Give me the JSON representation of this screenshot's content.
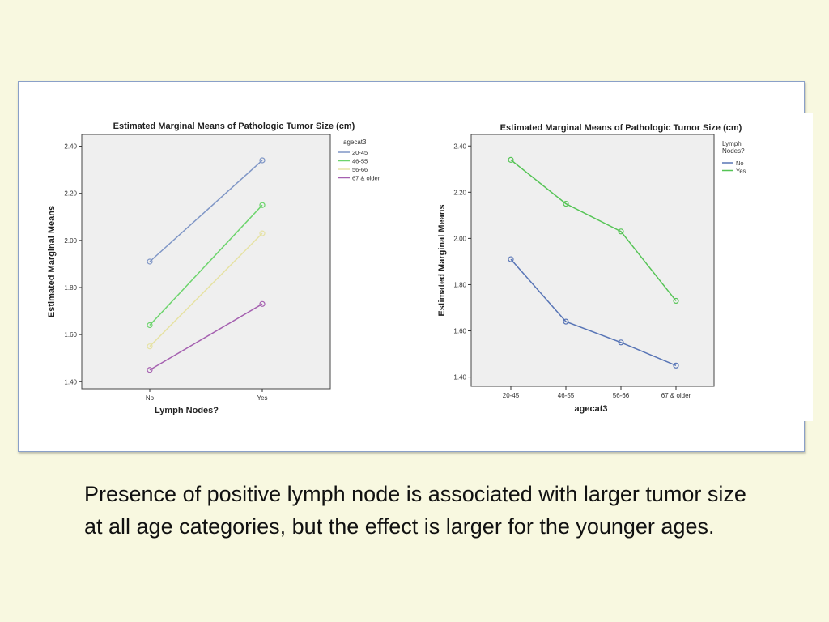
{
  "caption": "Presence of positive lymph node is associated with larger tumor size at all age categories, but the effect is larger for the younger ages.",
  "chart_data": [
    {
      "type": "line",
      "title": "Estimated Marginal Means of Pathologic Tumor Size (cm)",
      "xlabel": "Lymph Nodes?",
      "ylabel": "Estimated Marginal Means",
      "categories": [
        "No",
        "Yes"
      ],
      "yticks": [
        "1.40",
        "1.60",
        "1.80",
        "2.00",
        "2.20",
        "2.40"
      ],
      "ylim": [
        1.37,
        2.45
      ],
      "legend_title": "agecat3",
      "legend_position": "right",
      "grid": false,
      "series": [
        {
          "name": "20-45",
          "color": "#7f96c6",
          "values": [
            1.91,
            2.34
          ]
        },
        {
          "name": "46-55",
          "color": "#6cd46c",
          "values": [
            1.64,
            2.15
          ]
        },
        {
          "name": "56-66",
          "color": "#e6e2a4",
          "values": [
            1.55,
            2.03
          ]
        },
        {
          "name": "67 & older",
          "color": "#a560b0",
          "values": [
            1.45,
            1.73
          ]
        }
      ]
    },
    {
      "type": "line",
      "title": "Estimated Marginal Means of Pathologic Tumor Size (cm)",
      "xlabel": "agecat3",
      "ylabel": "Estimated Marginal Means",
      "categories": [
        "20-45",
        "46-55",
        "56-66",
        "67 & older"
      ],
      "yticks": [
        "1.40",
        "1.60",
        "1.80",
        "2.00",
        "2.20",
        "2.40"
      ],
      "ylim": [
        1.36,
        2.45
      ],
      "legend_title": "Lymph Nodes?",
      "legend_position": "right",
      "grid": false,
      "series": [
        {
          "name": "No",
          "color": "#5875b6",
          "values": [
            1.91,
            1.64,
            1.55,
            1.45
          ]
        },
        {
          "name": "Yes",
          "color": "#55c455",
          "values": [
            2.34,
            2.15,
            2.03,
            1.73
          ]
        }
      ]
    }
  ]
}
